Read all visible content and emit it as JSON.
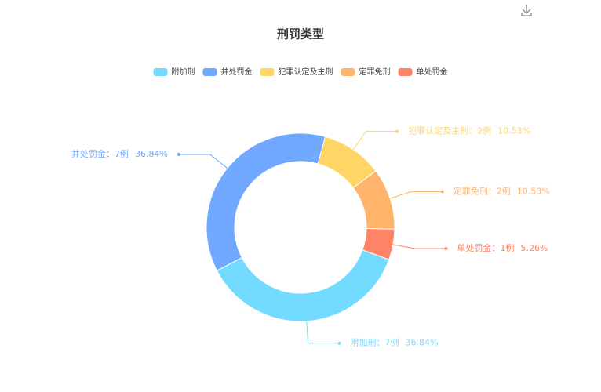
{
  "chart_data": {
    "type": "donut",
    "title": "刑罚类型",
    "categories": [
      "附加刑",
      "并处罚金",
      "犯罪认定及主刑",
      "定罪免刑",
      "单处罚金"
    ],
    "values": [
      7,
      7,
      2,
      2,
      1
    ],
    "value_labels": [
      "7例",
      "7例",
      "2例",
      "2例",
      "1例"
    ],
    "percent_labels": [
      "36.84%",
      "36.84%",
      "10.53%",
      "10.53%",
      "5.26%"
    ],
    "label_separator": "：",
    "colors": [
      "#72dbff",
      "#70a9ff",
      "#ffd666",
      "#ffb36b",
      "#ff8466"
    ]
  }
}
